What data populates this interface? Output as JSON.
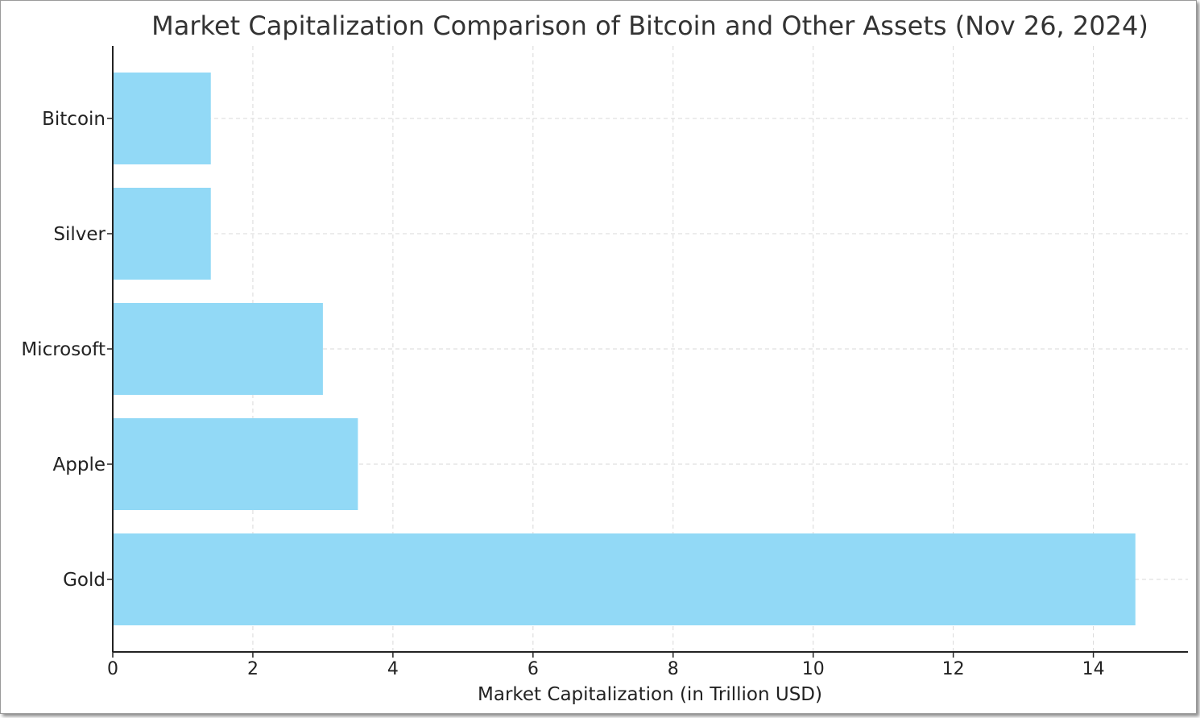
{
  "chart_data": {
    "type": "bar",
    "orientation": "horizontal",
    "title": "Market Capitalization Comparison of Bitcoin and Other Assets (Nov 26, 2024)",
    "xlabel": "Market Capitalization (in Trillion USD)",
    "ylabel": "",
    "categories": [
      "Bitcoin",
      "Silver",
      "Microsoft",
      "Apple",
      "Gold"
    ],
    "values": [
      1.4,
      1.4,
      3.0,
      3.5,
      14.6
    ],
    "xlim": [
      0,
      15.35
    ],
    "xticks": [
      0,
      2,
      4,
      6,
      8,
      10,
      12,
      14
    ],
    "grid": true,
    "legend": "none",
    "bar_color": "#92d9f6"
  }
}
